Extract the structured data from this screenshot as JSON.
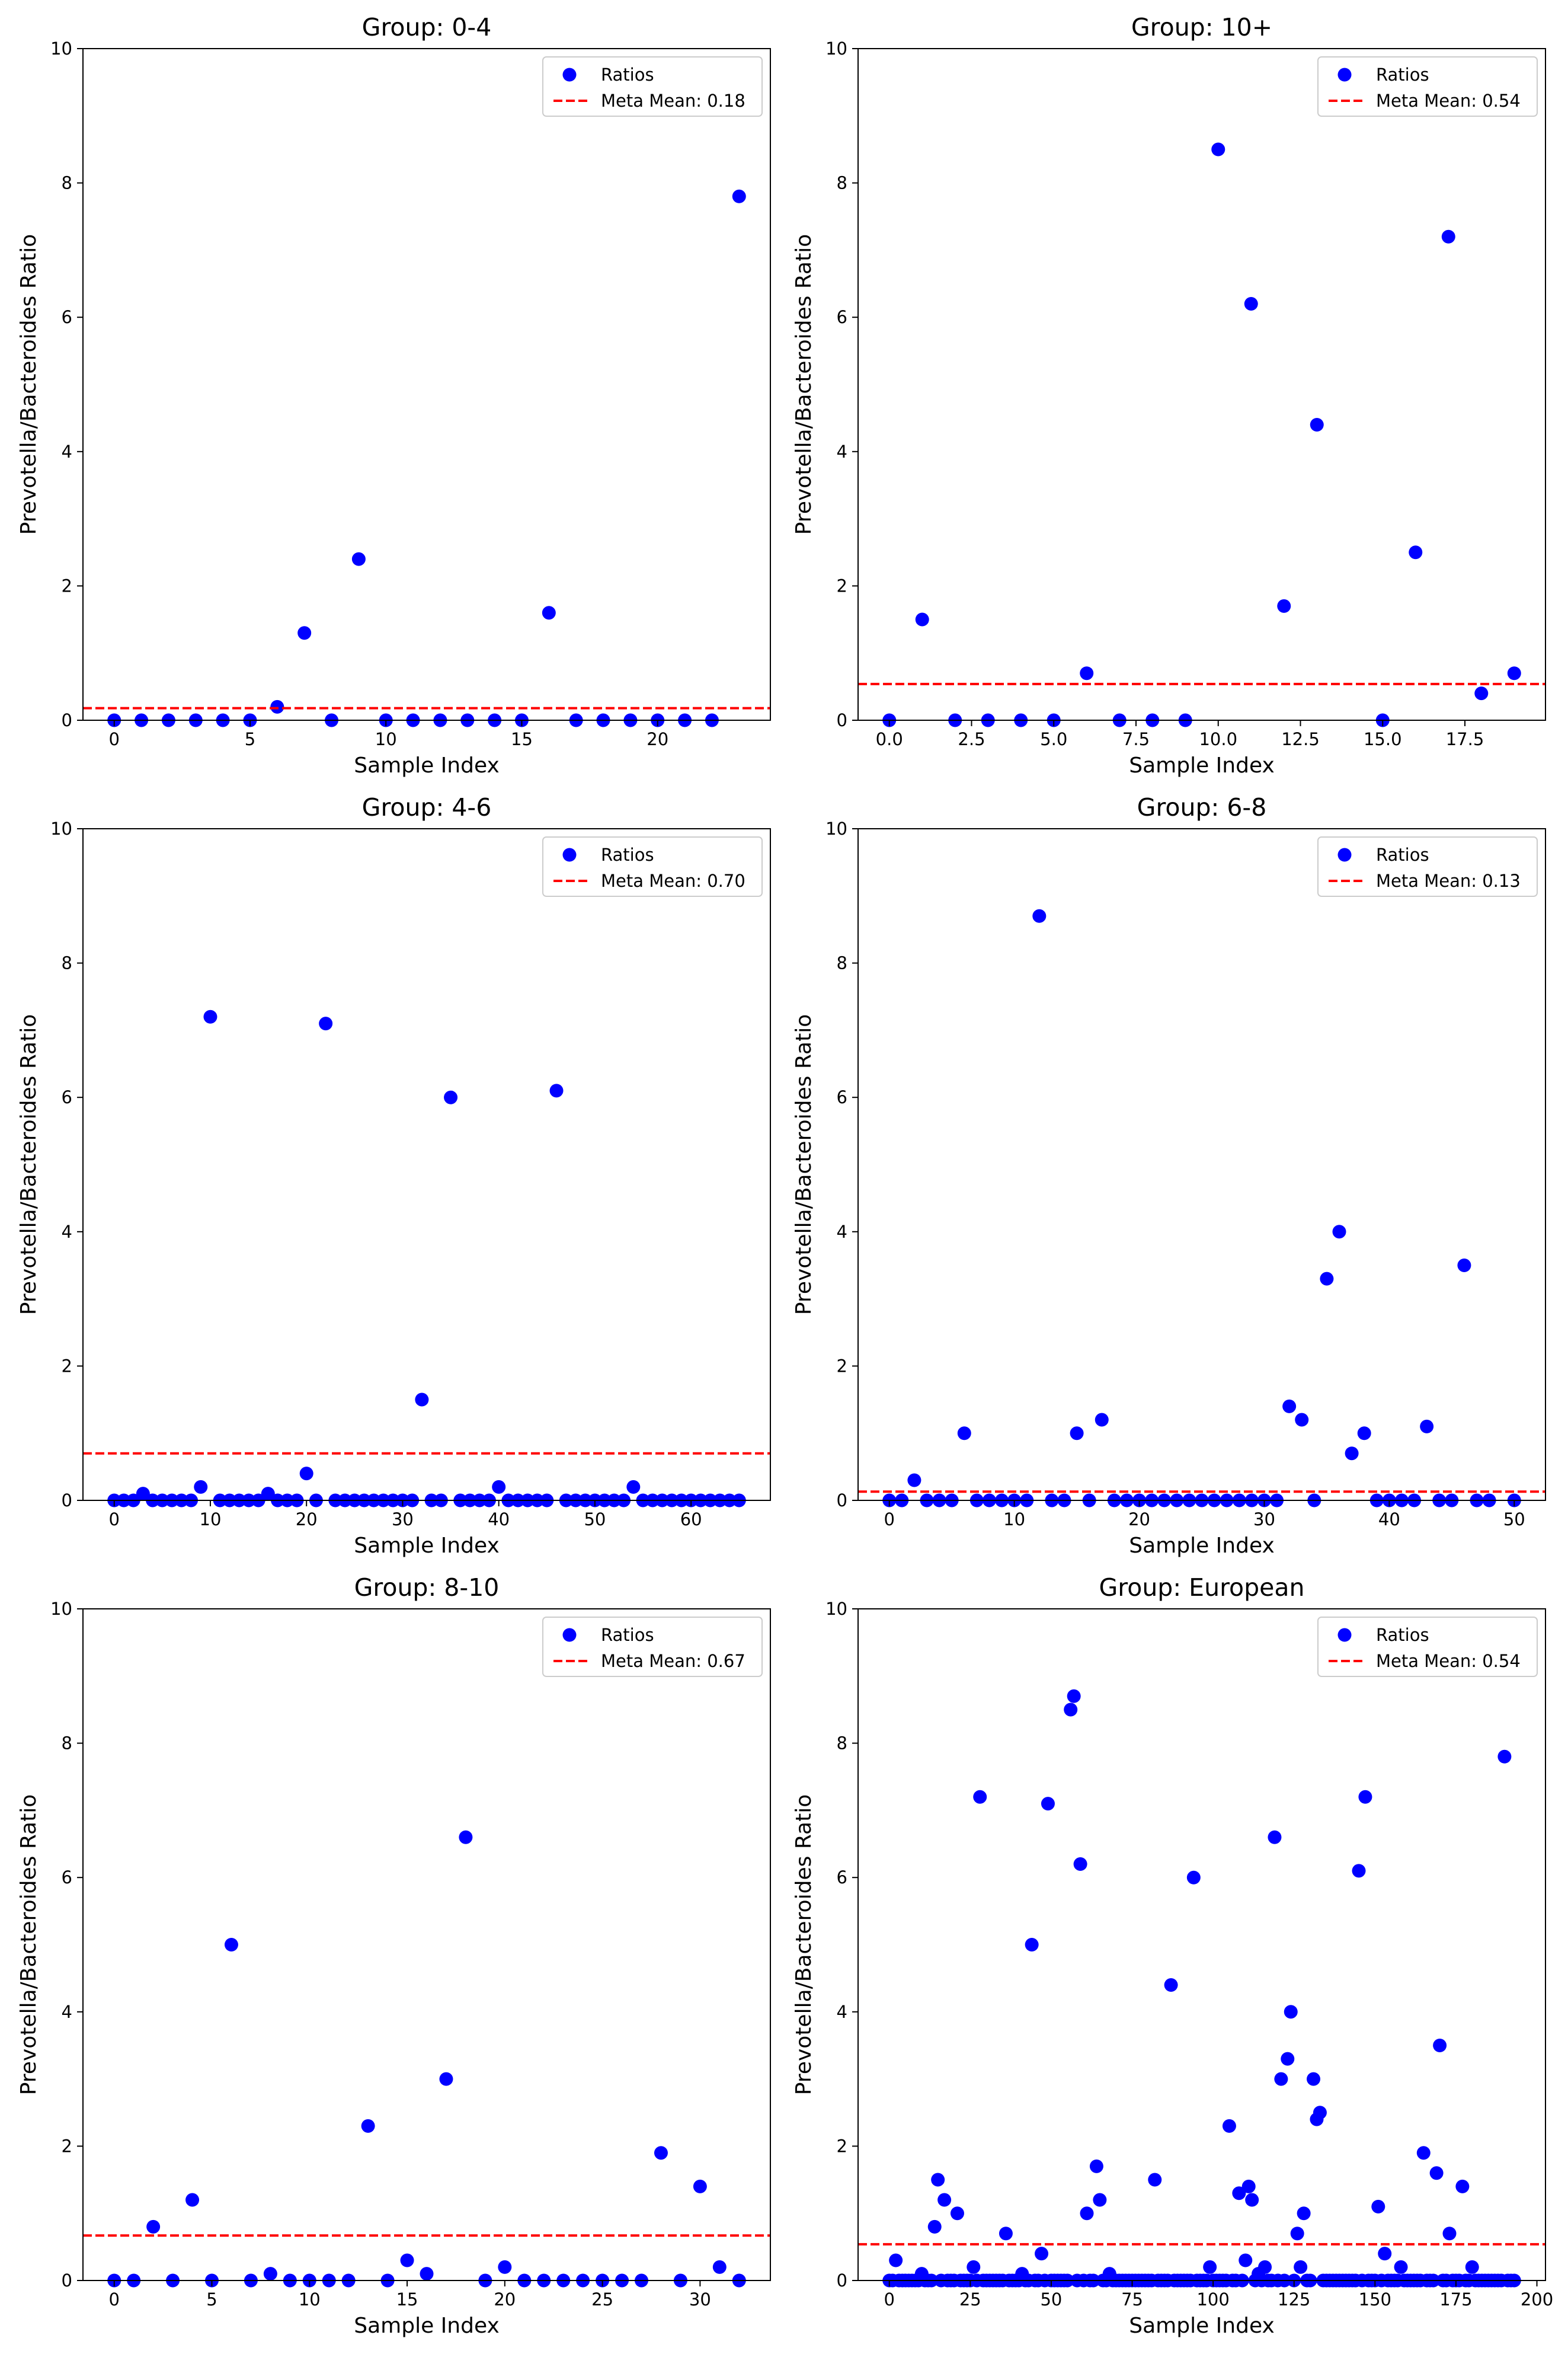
{
  "figure": {
    "name": "Prevotella/Bacteroides ratio by group"
  },
  "colors": {
    "points": "#0000ff",
    "meanLine": "#ff0000",
    "axes": "#000000",
    "legendBorder": "#cccccc"
  },
  "chart_data": [
    {
      "type": "scatter",
      "title": "Group: 0-4",
      "xlabel": "Sample Index",
      "ylabel": "Prevotella/Bacteroides Ratio",
      "xlim": [
        -1.15,
        24.15
      ],
      "ylim": [
        0,
        10
      ],
      "xticks": [
        0,
        5,
        10,
        15,
        20
      ],
      "xtickLabels": [
        "0",
        "5",
        "10",
        "15",
        "20"
      ],
      "yticks": [
        0,
        2,
        4,
        6,
        8,
        10
      ],
      "ytickLabels": [
        "0",
        "2",
        "4",
        "6",
        "8",
        "10"
      ],
      "legend": {
        "position": "top-right",
        "points_label": "Ratios",
        "line_label": "Meta Mean: 0.18"
      },
      "meta_mean": 0.18,
      "x": [
        0,
        1,
        2,
        3,
        4,
        5,
        6,
        7,
        8,
        9,
        10,
        11,
        12,
        13,
        14,
        15,
        16,
        17,
        18,
        19,
        20,
        21,
        22,
        23
      ],
      "y": [
        0,
        0,
        0,
        0,
        0,
        0,
        0.2,
        1.3,
        0,
        2.4,
        0,
        0,
        0,
        0,
        0,
        0,
        1.6,
        0,
        0,
        0,
        0,
        0,
        0,
        7.8
      ]
    },
    {
      "type": "scatter",
      "title": "Group: 10+",
      "xlabel": "Sample Index",
      "ylabel": "Prevotella/Bacteroides Ratio",
      "xlim": [
        -0.95,
        19.95
      ],
      "ylim": [
        0,
        10
      ],
      "xticks": [
        0,
        2.5,
        5,
        7.5,
        10,
        12.5,
        15,
        17.5
      ],
      "xtickLabels": [
        "0.0",
        "2.5",
        "5.0",
        "7.5",
        "10.0",
        "12.5",
        "15.0",
        "17.5"
      ],
      "yticks": [
        0,
        2,
        4,
        6,
        8,
        10
      ],
      "ytickLabels": [
        "0",
        "2",
        "4",
        "6",
        "8",
        "10"
      ],
      "legend": {
        "position": "top-right",
        "points_label": "Ratios",
        "line_label": "Meta Mean: 0.54"
      },
      "meta_mean": 0.54,
      "x": [
        0,
        1,
        2,
        3,
        4,
        5,
        6,
        7,
        8,
        9,
        10,
        11,
        12,
        13,
        15,
        16,
        17,
        18,
        19
      ],
      "y": [
        0,
        1.5,
        0,
        0,
        0,
        0,
        0.7,
        0,
        0,
        0,
        8.5,
        6.2,
        1.7,
        4.4,
        0,
        2.5,
        7.2,
        0.4,
        0.7
      ]
    },
    {
      "type": "scatter",
      "title": "Group: 4-6",
      "xlabel": "Sample Index",
      "ylabel": "Prevotella/Bacteroides Ratio",
      "xlim": [
        -3.25,
        68.25
      ],
      "ylim": [
        0,
        10
      ],
      "xticks": [
        0,
        10,
        20,
        30,
        40,
        50,
        60
      ],
      "xtickLabels": [
        "0",
        "10",
        "20",
        "30",
        "40",
        "50",
        "60"
      ],
      "yticks": [
        0,
        2,
        4,
        6,
        8,
        10
      ],
      "ytickLabels": [
        "0",
        "2",
        "4",
        "6",
        "8",
        "10"
      ],
      "legend": {
        "position": "top-right",
        "points_label": "Ratios",
        "line_label": "Meta Mean: 0.70"
      },
      "meta_mean": 0.7,
      "x": [
        0,
        1,
        2,
        3,
        4,
        5,
        6,
        7,
        8,
        9,
        10,
        11,
        12,
        13,
        14,
        15,
        16,
        17,
        18,
        19,
        20,
        21,
        22,
        23,
        24,
        25,
        26,
        27,
        28,
        29,
        30,
        31,
        32,
        33,
        34,
        35,
        36,
        37,
        38,
        39,
        40,
        41,
        42,
        43,
        44,
        45,
        46,
        47,
        48,
        49,
        50,
        51,
        52,
        53,
        54,
        55,
        56,
        57,
        58,
        59,
        60,
        61,
        62,
        63,
        64,
        65
      ],
      "y": [
        0,
        0,
        0,
        0.1,
        0,
        0,
        0,
        0,
        0,
        0.2,
        7.2,
        0,
        0,
        0,
        0,
        0,
        0.1,
        0,
        0,
        0,
        0.4,
        0,
        7.1,
        0,
        0,
        0,
        0,
        0,
        0,
        0,
        0,
        0,
        1.5,
        0,
        0,
        6.0,
        0,
        0,
        0,
        0,
        0.2,
        0,
        0,
        0,
        0,
        0,
        6.1,
        0,
        0,
        0,
        0,
        0,
        0,
        0,
        0.2,
        0,
        0,
        0,
        0,
        0,
        0,
        0,
        0,
        0,
        0,
        0
      ]
    },
    {
      "type": "scatter",
      "title": "Group: 6-8",
      "xlabel": "Sample Index",
      "ylabel": "Prevotella/Bacteroides Ratio",
      "xlim": [
        -2.5,
        52.5
      ],
      "ylim": [
        0,
        10
      ],
      "xticks": [
        0,
        10,
        20,
        30,
        40,
        50
      ],
      "xtickLabels": [
        "0",
        "10",
        "20",
        "30",
        "40",
        "50"
      ],
      "yticks": [
        0,
        2,
        4,
        6,
        8,
        10
      ],
      "ytickLabels": [
        "0",
        "2",
        "4",
        "6",
        "8",
        "10"
      ],
      "legend": {
        "position": "top-right",
        "points_label": "Ratios",
        "line_label": "Meta Mean: 0.13"
      },
      "meta_mean": 0.13,
      "x": [
        0,
        1,
        2,
        3,
        4,
        5,
        6,
        7,
        8,
        9,
        10,
        11,
        12,
        13,
        14,
        15,
        16,
        17,
        18,
        19,
        20,
        21,
        22,
        23,
        24,
        25,
        26,
        27,
        28,
        29,
        30,
        31,
        32,
        33,
        34,
        35,
        36,
        37,
        38,
        39,
        40,
        41,
        42,
        43,
        44,
        45,
        46,
        47,
        48,
        50
      ],
      "y": [
        0,
        0,
        0.3,
        0,
        0,
        0,
        1.0,
        0,
        0,
        0,
        0,
        0,
        8.7,
        0,
        0,
        1.0,
        0,
        1.2,
        0,
        0,
        0,
        0,
        0,
        0,
        0,
        0,
        0,
        0,
        0,
        0,
        0,
        0,
        1.4,
        1.2,
        0,
        3.3,
        4.0,
        0.7,
        1.0,
        0,
        0,
        0,
        0,
        1.1,
        0,
        0,
        3.5,
        0,
        0,
        0
      ]
    },
    {
      "type": "scatter",
      "title": "Group: 8-10",
      "xlabel": "Sample Index",
      "ylabel": "Prevotella/Bacteroides Ratio",
      "xlim": [
        -1.6,
        33.6
      ],
      "ylim": [
        0,
        10
      ],
      "xticks": [
        0,
        5,
        10,
        15,
        20,
        25,
        30
      ],
      "xtickLabels": [
        "0",
        "5",
        "10",
        "15",
        "20",
        "25",
        "30"
      ],
      "yticks": [
        0,
        2,
        4,
        6,
        8,
        10
      ],
      "ytickLabels": [
        "0",
        "2",
        "4",
        "6",
        "8",
        "10"
      ],
      "legend": {
        "position": "top-right",
        "points_label": "Ratios",
        "line_label": "Meta Mean: 0.67"
      },
      "meta_mean": 0.67,
      "x": [
        0,
        1,
        2,
        3,
        4,
        5,
        6,
        7,
        8,
        9,
        10,
        11,
        12,
        13,
        14,
        15,
        16,
        17,
        18,
        19,
        20,
        21,
        22,
        23,
        24,
        25,
        26,
        27,
        28,
        29,
        30,
        31,
        32
      ],
      "y": [
        0,
        0,
        0.8,
        0,
        1.2,
        0,
        5.0,
        0,
        0.1,
        0,
        0,
        0,
        0,
        2.3,
        0,
        0.3,
        0.1,
        3.0,
        6.6,
        0,
        0.2,
        0,
        0,
        0,
        0,
        0,
        0,
        0,
        1.9,
        0,
        1.4,
        0.2,
        0
      ]
    },
    {
      "type": "scatter",
      "title": "Group: European",
      "xlabel": "Sample Index",
      "ylabel": "Prevotella/Bacteroides Ratio",
      "xlim": [
        -9.65,
        202.65
      ],
      "ylim": [
        0,
        10
      ],
      "xticks": [
        0,
        25,
        50,
        75,
        100,
        125,
        150,
        175,
        200
      ],
      "xtickLabels": [
        "0",
        "25",
        "50",
        "75",
        "100",
        "125",
        "150",
        "175",
        "200"
      ],
      "yticks": [
        0,
        2,
        4,
        6,
        8,
        10
      ],
      "ytickLabels": [
        "0",
        "2",
        "4",
        "6",
        "8",
        "10"
      ],
      "legend": {
        "position": "top-right",
        "points_label": "Ratios",
        "line_label": "Meta Mean: 0.54"
      },
      "meta_mean": 0.54,
      "zero_baseline_range": [
        0,
        193
      ],
      "x": [
        2,
        10,
        14,
        15,
        17,
        21,
        26,
        28,
        36,
        41,
        44,
        47,
        49,
        56,
        57,
        59,
        61,
        64,
        65,
        68,
        82,
        87,
        94,
        99,
        105,
        108,
        110,
        111,
        112,
        114,
        116,
        119,
        121,
        123,
        124,
        126,
        127,
        128,
        131,
        132,
        133,
        145,
        147,
        151,
        153,
        158,
        165,
        169,
        170,
        173,
        177,
        180,
        190
      ],
      "y": [
        0.3,
        0.1,
        0.8,
        1.5,
        1.2,
        1.0,
        0.2,
        7.2,
        0.7,
        0.1,
        5.0,
        0.4,
        7.1,
        8.5,
        8.7,
        6.2,
        1.0,
        1.7,
        1.2,
        0.1,
        1.5,
        4.4,
        6.0,
        0.2,
        2.3,
        1.3,
        0.3,
        1.4,
        1.2,
        0.1,
        0.2,
        6.6,
        3.0,
        3.3,
        4.0,
        0.7,
        0.2,
        1.0,
        3.0,
        2.4,
        2.5,
        6.1,
        7.2,
        1.1,
        0.4,
        0.2,
        1.9,
        1.6,
        3.5,
        0.7,
        1.4,
        0.2,
        7.8
      ]
    }
  ]
}
